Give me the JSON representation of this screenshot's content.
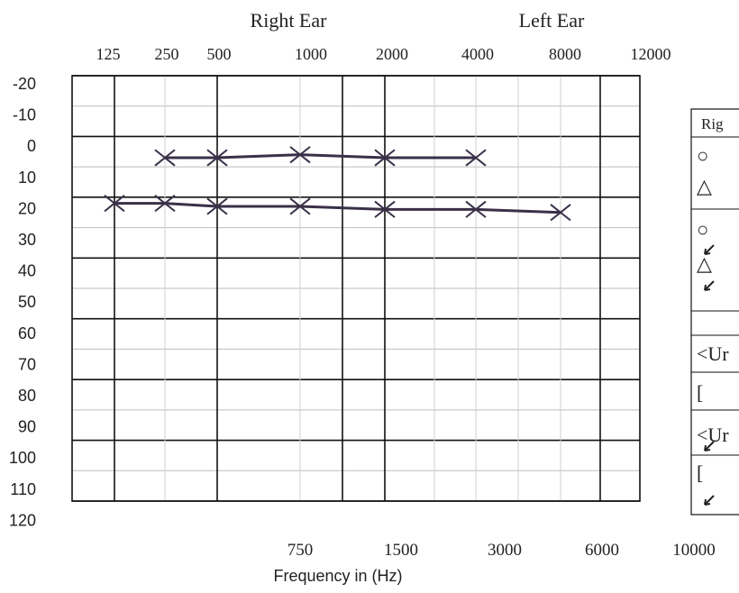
{
  "chart_data": {
    "type": "line",
    "header_labels": {
      "right_ear": "Right Ear",
      "left_ear": "Left Ear"
    },
    "top_frequency_labels": [
      "125",
      "250",
      "500",
      "1000",
      "2000",
      "4000",
      "8000",
      "12000"
    ],
    "bottom_frequency_labels": [
      "750",
      "1500",
      "3000",
      "6000",
      "10000"
    ],
    "xlabel": "Frequency in (Hz)",
    "y_tick_labels": [
      "-20",
      "-10",
      "0",
      "10",
      "20",
      "30",
      "40",
      "50",
      "60",
      "70",
      "80",
      "90",
      "100",
      "110",
      "120"
    ],
    "ylim": [
      -20,
      120
    ],
    "y_reversed": true,
    "marker": "x",
    "line_color": "#3a3048",
    "series": [
      {
        "x": [
          "250",
          "500",
          "750",
          "2000",
          "4000"
        ],
        "values": [
          7,
          7,
          6,
          7,
          7
        ]
      },
      {
        "x": [
          "125",
          "250",
          "500",
          "750",
          "2000",
          "4000",
          "8000"
        ],
        "values": [
          22,
          22,
          23,
          23,
          24,
          24,
          25
        ]
      }
    ],
    "legend_partial": {
      "header": "Rig",
      "glyphs": [
        "○",
        "△",
        "○",
        "△",
        "<Ur",
        "[",
        "<Ur",
        "["
      ]
    }
  }
}
